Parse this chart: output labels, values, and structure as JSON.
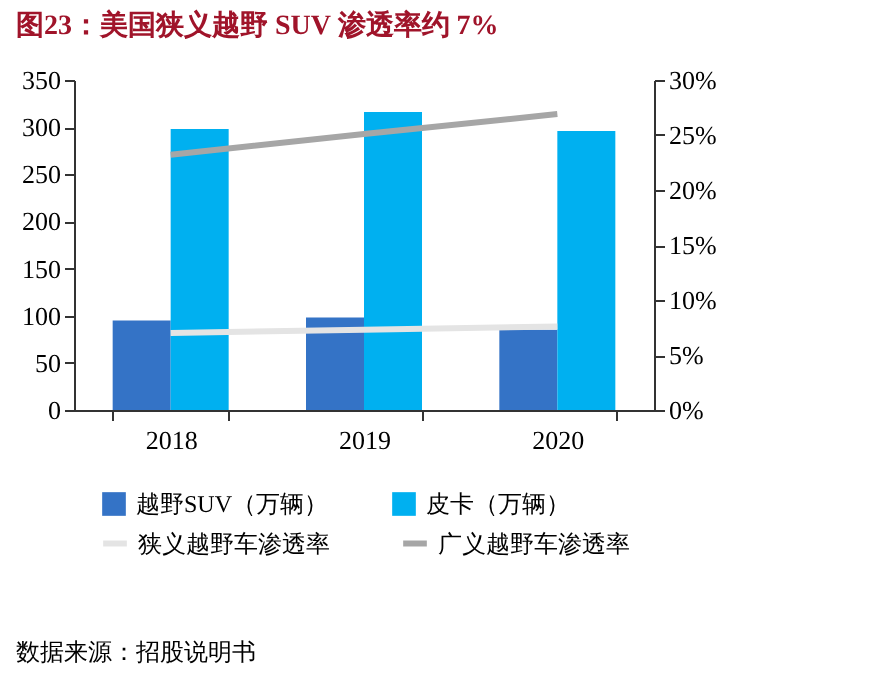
{
  "chart_data": {
    "type": "bar",
    "title": "图23：美国狭义越野 SUV 渗透率约 7%",
    "categories": [
      "2018",
      "2019",
      "2020"
    ],
    "series": [
      {
        "name": "越野SUV（万辆）",
        "color": "#3473c6",
        "values": [
          95,
          98,
          85
        ]
      },
      {
        "name": "皮卡（万辆）",
        "color": "#00b0f0",
        "values": [
          298,
          316,
          296
        ]
      },
      {
        "name": "狭义越野车渗透率",
        "type": "line",
        "axis": "y2",
        "color": "#e4e4e4",
        "values": [
          7.0,
          7.3,
          7.6
        ]
      },
      {
        "name": "广义越野车渗透率",
        "type": "line",
        "axis": "y2",
        "color": "#a6a6a6",
        "values": [
          23.2,
          25.1,
          26.9
        ]
      }
    ],
    "ylim": [
      0,
      350
    ],
    "yticks": [
      0,
      50,
      100,
      150,
      200,
      250,
      300,
      350
    ],
    "y2lim": [
      0,
      30
    ],
    "y2ticks": [
      {
        "value": 0,
        "label": "0%"
      },
      {
        "value": 5,
        "label": "5%"
      },
      {
        "value": 10,
        "label": "10%"
      },
      {
        "value": 15,
        "label": "15%"
      },
      {
        "value": 20,
        "label": "20%"
      },
      {
        "value": 25,
        "label": "25%"
      },
      {
        "value": 30,
        "label": "30%"
      }
    ],
    "legend": "bottom",
    "grid": false,
    "marker": "none",
    "line_style": "solid",
    "annotations": [
      "数据来源：招股说明书"
    ]
  }
}
